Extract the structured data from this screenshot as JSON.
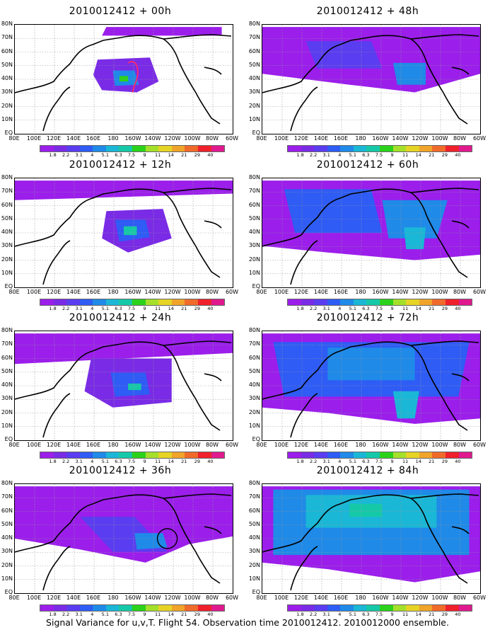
{
  "figure": {
    "caption": "Signal Variance for u,v,T. Flight 54. Observation time 2010012412. 2010012000 ensemble."
  },
  "axes": {
    "lat_labels": [
      "80N",
      "70N",
      "60N",
      "50N",
      "40N",
      "30N",
      "20N",
      "10N",
      "EQ"
    ],
    "lon_labels": [
      "80E",
      "100E",
      "120E",
      "140E",
      "160E",
      "180",
      "160W",
      "140W",
      "120W",
      "100W",
      "80W",
      "60W"
    ]
  },
  "colorbar": {
    "labels": [
      "1.8",
      "2.2",
      "3.1",
      "4",
      "5.1",
      "6.3",
      "7.5",
      "9",
      "11",
      "14",
      "21",
      "29",
      "40"
    ],
    "colors": [
      "#9b1eeb",
      "#7a2be6",
      "#5a3df0",
      "#2e5cf5",
      "#1f8ae8",
      "#1ab7d6",
      "#15c9a8",
      "#2bd21a",
      "#a4e02a",
      "#e6d425",
      "#f0a42a",
      "#f06a2a",
      "#f0202c",
      "#e01a8e"
    ]
  },
  "panels": [
    {
      "id": "00h",
      "title": "2010012412 + 00h"
    },
    {
      "id": "48h",
      "title": "2010012412 + 48h"
    },
    {
      "id": "12h",
      "title": "2010012412 + 12h"
    },
    {
      "id": "60h",
      "title": "2010012412 + 60h"
    },
    {
      "id": "24h",
      "title": "2010012412 + 24h"
    },
    {
      "id": "72h",
      "title": "2010012412 + 72h"
    },
    {
      "id": "36h",
      "title": "2010012412 + 36h"
    },
    {
      "id": "84h",
      "title": "2010012412 + 84h"
    }
  ]
}
